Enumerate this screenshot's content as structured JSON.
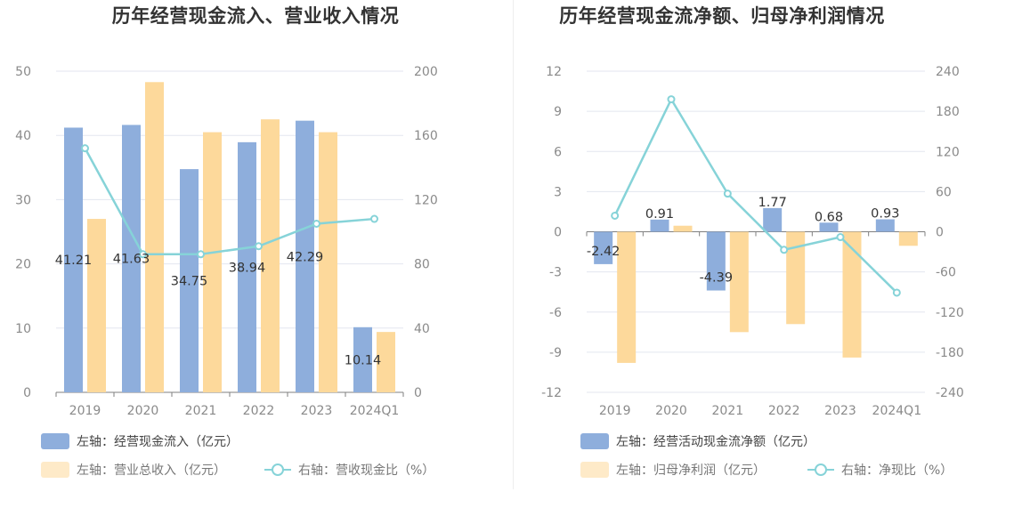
{
  "chart_data": [
    {
      "type": "bar",
      "title": "历年经营现金流入、营业收入情况",
      "categories": [
        "2019",
        "2020",
        "2021",
        "2022",
        "2023",
        "2024Q1"
      ],
      "left_axis": {
        "ylim": [
          0,
          50
        ],
        "ticks": [
          "0",
          "10",
          "20",
          "30",
          "40",
          "50"
        ]
      },
      "right_axis": {
        "ylim": [
          0,
          200
        ],
        "ticks": [
          "0",
          "40",
          "80",
          "120",
          "160",
          "200"
        ]
      },
      "series": [
        {
          "name": "左轴：经营现金流入（亿元）",
          "kind": "bar",
          "axis": "left",
          "color": "#8eaedc",
          "values": [
            41.21,
            41.63,
            34.75,
            38.94,
            42.29,
            10.14
          ],
          "labels": [
            "41.21",
            "41.63",
            "34.75",
            "38.94",
            "42.29",
            "10.14"
          ]
        },
        {
          "name": "左轴：营业总收入（亿元）",
          "kind": "bar",
          "axis": "left",
          "color": "#fdd99b",
          "values": [
            27.0,
            48.3,
            40.5,
            42.5,
            40.5,
            9.4
          ]
        },
        {
          "name": "右轴：营收现金比（%）",
          "kind": "line",
          "axis": "right",
          "color": "#86d3d8",
          "values": [
            152,
            86,
            86,
            91,
            105,
            108
          ]
        }
      ],
      "legend_position": "bottom-left",
      "grid": true
    },
    {
      "type": "bar",
      "title": "历年经营现金流净额、归母净利润情况",
      "categories": [
        "2019",
        "2020",
        "2021",
        "2022",
        "2023",
        "2024Q1"
      ],
      "left_axis": {
        "ylim": [
          -12,
          12
        ],
        "ticks": [
          "-12",
          "-9",
          "-6",
          "-3",
          "0",
          "3",
          "6",
          "9",
          "12"
        ]
      },
      "right_axis": {
        "ylim": [
          -240,
          240
        ],
        "ticks": [
          "-240",
          "-180",
          "-120",
          "-60",
          "0",
          "60",
          "120",
          "180",
          "240"
        ]
      },
      "series": [
        {
          "name": "左轴：经营活动现金流净额（亿元）",
          "kind": "bar",
          "axis": "left",
          "color": "#8eaedc",
          "values": [
            -2.42,
            0.91,
            -4.39,
            1.77,
            0.68,
            0.93
          ],
          "labels": [
            "-2.42",
            "0.91",
            "-4.39",
            "1.77",
            "0.68",
            "0.93"
          ]
        },
        {
          "name": "左轴：归母净利润（亿元）",
          "kind": "bar",
          "axis": "left",
          "color": "#fdd99b",
          "values": [
            -9.8,
            0.45,
            -7.5,
            -6.9,
            -9.4,
            -1.05
          ]
        },
        {
          "name": "右轴：净现比（%）",
          "kind": "line",
          "axis": "right",
          "color": "#86d3d8",
          "values": [
            24,
            198,
            57,
            -27,
            -8,
            -91
          ]
        }
      ],
      "legend_position": "bottom-left",
      "grid": true
    }
  ]
}
